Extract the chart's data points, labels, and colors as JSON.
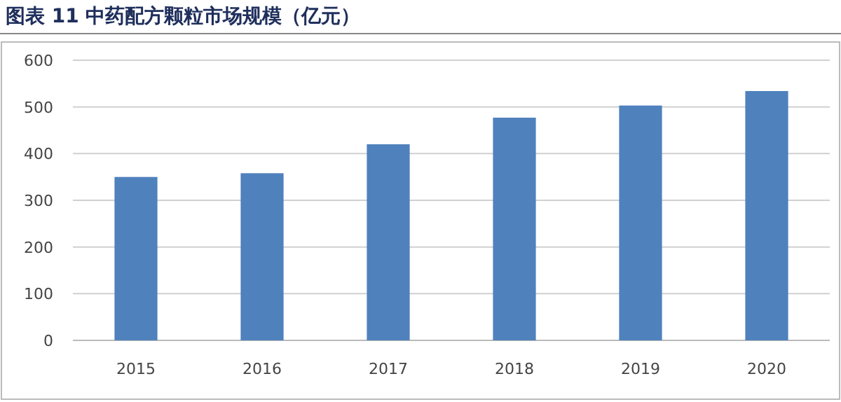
{
  "chart_data": {
    "type": "bar",
    "title": "图表 11  中药配方颗粒市场规模（亿元）",
    "categories": [
      "2015",
      "2016",
      "2017",
      "2018",
      "2019",
      "2020"
    ],
    "values": [
      350,
      358,
      420,
      477,
      503,
      534
    ],
    "color": "#4f81bd",
    "ylim": [
      0,
      600
    ],
    "yticks": [
      0,
      100,
      200,
      300,
      400,
      500,
      600
    ],
    "grid": "y"
  }
}
